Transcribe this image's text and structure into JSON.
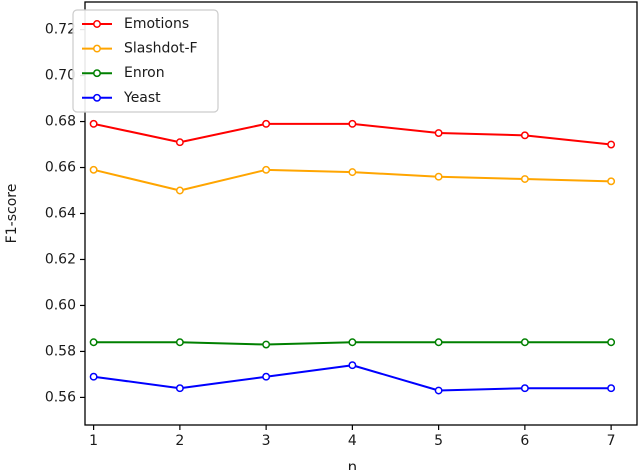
{
  "figure": {
    "title": "",
    "xlabel": "n",
    "ylabel": "F1-score"
  },
  "chart_data": {
    "type": "line",
    "x": [
      1,
      2,
      3,
      4,
      5,
      6,
      7
    ],
    "series": [
      {
        "name": "Emotions",
        "color": "#ff0000",
        "values": [
          0.679,
          0.671,
          0.679,
          0.679,
          0.675,
          0.674,
          0.67
        ]
      },
      {
        "name": "Slashdot-F",
        "color": "#ffa500",
        "values": [
          0.659,
          0.65,
          0.659,
          0.658,
          0.656,
          0.655,
          0.654
        ]
      },
      {
        "name": "Enron",
        "color": "#008000",
        "values": [
          0.584,
          0.584,
          0.583,
          0.584,
          0.584,
          0.584,
          0.584
        ]
      },
      {
        "name": "Yeast",
        "color": "#0000ff",
        "values": [
          0.569,
          0.564,
          0.569,
          0.574,
          0.563,
          0.564,
          0.564
        ]
      }
    ],
    "title": "",
    "xlabel": "n",
    "ylabel": "F1-score",
    "xlim": [
      0.9,
      7.3
    ],
    "ylim": [
      0.548,
      0.732
    ],
    "xticks": [
      1,
      2,
      3,
      4,
      5,
      6,
      7
    ],
    "yticks": [
      0.56,
      0.58,
      0.6,
      0.62,
      0.64,
      0.66,
      0.68,
      0.7,
      0.72
    ],
    "grid": false,
    "legend_position": "upper-left",
    "legend_entries": [
      "Emotions",
      "Slashdot-F",
      "Enron",
      "Yeast"
    ],
    "marker": "o",
    "line_width": 2,
    "axis_color": "#000000",
    "legend_border_color": "#cccccc"
  }
}
